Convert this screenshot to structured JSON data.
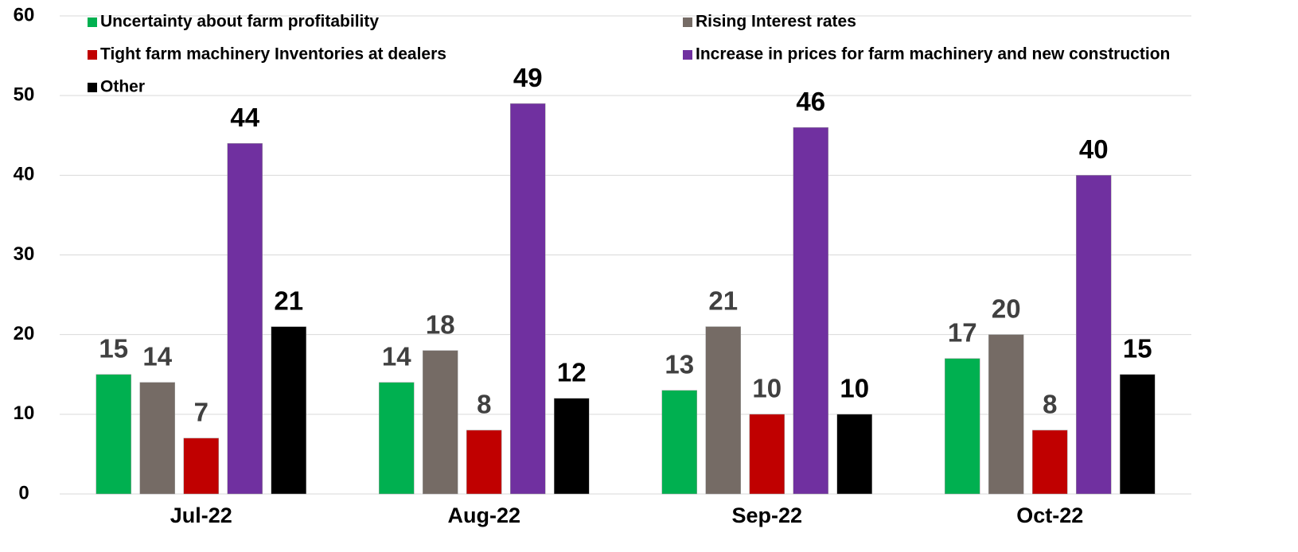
{
  "chart_data": {
    "type": "bar",
    "categories": [
      "Jul-22",
      "Aug-22",
      "Sep-22",
      "Oct-22"
    ],
    "series": [
      {
        "name": "Uncertainty about farm profitability",
        "color": "#00b050",
        "label_color": "#404040",
        "values": [
          15,
          14,
          13,
          17
        ]
      },
      {
        "name": "Rising Interest rates",
        "color": "#756b65",
        "label_color": "#404040",
        "values": [
          14,
          18,
          21,
          20
        ]
      },
      {
        "name": "Tight farm machinery Inventories at dealers",
        "color": "#c00000",
        "label_color": "#404040",
        "values": [
          7,
          8,
          10,
          8
        ]
      },
      {
        "name": "Increase in prices for farm machinery and new construction",
        "color": "#7030a0",
        "label_color": "#000000",
        "values": [
          44,
          49,
          46,
          40
        ]
      },
      {
        "name": "Other",
        "color": "#000000",
        "label_color": "#000000",
        "values": [
          21,
          12,
          10,
          15
        ]
      }
    ],
    "ylim": [
      0,
      60
    ],
    "yticks": [
      0,
      10,
      20,
      30,
      40,
      50,
      60
    ],
    "grid": true,
    "legend": "top"
  }
}
